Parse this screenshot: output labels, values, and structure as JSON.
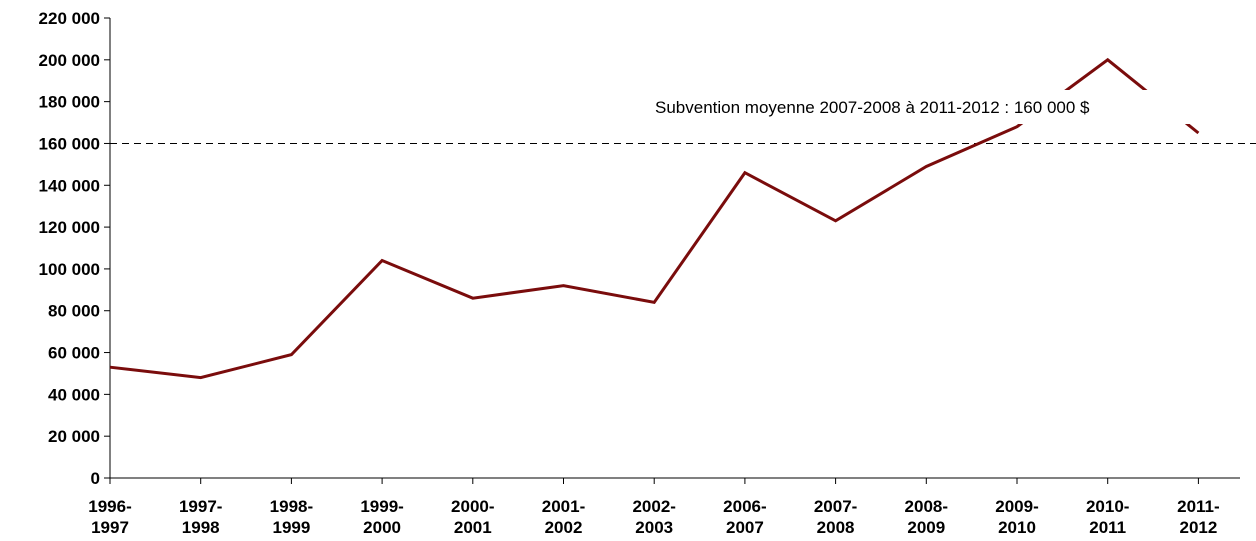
{
  "chart_data": {
    "type": "line",
    "title": "",
    "xlabel": "",
    "ylabel": "",
    "ylim": [
      0,
      220000
    ],
    "yticks": [
      "0",
      "20 000",
      "40 000",
      "60 000",
      "80 000",
      "100 000",
      "120 000",
      "140 000",
      "160 000",
      "180 000",
      "200 000",
      "220 000"
    ],
    "categories": [
      [
        "1996-",
        "1997"
      ],
      [
        "1997-",
        "1998"
      ],
      [
        "1998-",
        "1999"
      ],
      [
        "1999-",
        "2000"
      ],
      [
        "2000-",
        "2001"
      ],
      [
        "2001-",
        "2002"
      ],
      [
        "2002-",
        "2003"
      ],
      [
        "2006-",
        "2007"
      ],
      [
        "2007-",
        "2008"
      ],
      [
        "2008-",
        "2009"
      ],
      [
        "2009-",
        "2010"
      ],
      [
        "2010-",
        "2011"
      ],
      [
        "2011-",
        "2012"
      ]
    ],
    "series": [
      {
        "values": [
          53000,
          48000,
          59000,
          104000,
          86000,
          92000,
          84000,
          146000,
          123000,
          149000,
          168000,
          200000,
          165000
        ],
        "color": "#7a0c0c"
      }
    ],
    "reference_line": {
      "value": 160000,
      "style": "dashed",
      "label": "Subvention moyenne  2007-2008 à 2011-2012 : 160 000 $"
    },
    "grid": false,
    "legend": "none"
  }
}
